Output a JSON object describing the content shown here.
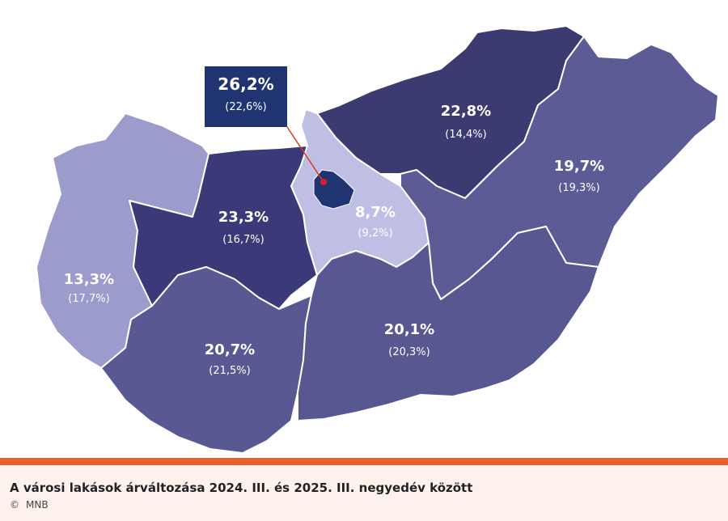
{
  "map": {
    "regions": [
      {
        "id": "nyugat-dunantul",
        "value": "13,3%",
        "prev": "(17,7%)",
        "color": "#9b9bcc"
      },
      {
        "id": "kozep-dunantul",
        "value": "23,3%",
        "prev": "(16,7%)",
        "color": "#3a3a78"
      },
      {
        "id": "del-dunantul",
        "value": "20,7%",
        "prev": "(21,5%)",
        "color": "#585893"
      },
      {
        "id": "pest",
        "value": "8,7%",
        "prev": "(9,2%)",
        "color": "#bfbfe6"
      },
      {
        "id": "eszak-magyarorszag",
        "value": "22,8%",
        "prev": "(14,4%)",
        "color": "#3b3b72"
      },
      {
        "id": "eszak-alfold",
        "value": "19,7%",
        "prev": "(19,3%)",
        "color": "#5b5b96"
      },
      {
        "id": "del-alfold",
        "value": "20,1%",
        "prev": "(20,3%)",
        "color": "#575791"
      }
    ],
    "budapest": {
      "value": "26,2%",
      "prev": "(22,6%)",
      "color": "#1f3470",
      "marker_color": "#d62020"
    }
  },
  "caption": {
    "title": "A városi lakások árváltozása 2024. III. és 2025. III. negyedév között",
    "copyright_symbol": "©",
    "source": "MNB"
  },
  "colors": {
    "accent_bar": "#e8602c",
    "caption_bg": "#fdf1ec"
  }
}
